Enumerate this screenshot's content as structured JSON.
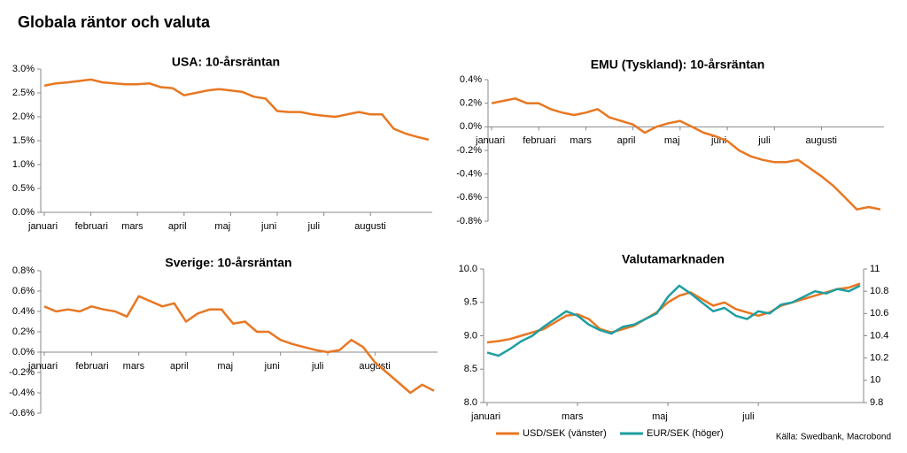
{
  "title": "Globala räntor och valuta",
  "source": "Källa: Swedbank, Macrobond",
  "chart_data": [
    {
      "type": "line",
      "title": "USA: 10-årsräntan",
      "color": "#e87722",
      "categories": [
        "januari",
        null,
        null,
        null,
        "februari",
        null,
        null,
        null,
        "mars",
        null,
        null,
        null,
        "april",
        null,
        null,
        null,
        "maj",
        null,
        null,
        null,
        "juni",
        null,
        null,
        null,
        "juli",
        null,
        null,
        null,
        "augusti",
        null,
        null,
        null,
        null,
        null
      ],
      "values": [
        2.65,
        2.7,
        2.72,
        2.75,
        2.78,
        2.72,
        2.7,
        2.68,
        2.68,
        2.7,
        2.62,
        2.6,
        2.45,
        2.5,
        2.55,
        2.58,
        2.55,
        2.52,
        2.42,
        2.38,
        2.12,
        2.1,
        2.1,
        2.05,
        2.02,
        2.0,
        2.05,
        2.1,
        2.05,
        2.05,
        1.75,
        1.65,
        1.58,
        1.52
      ],
      "ylim": [
        0,
        3
      ],
      "yticks": [
        {
          "value": 0,
          "label": "0.0%"
        },
        {
          "value": 0.5,
          "label": "0.5%"
        },
        {
          "value": 1,
          "label": "1.0%"
        },
        {
          "value": 1.5,
          "label": "1.5%"
        },
        {
          "value": 2,
          "label": "2.0%"
        },
        {
          "value": 2.5,
          "label": "2.5%"
        },
        {
          "value": 3,
          "label": "3.0%"
        }
      ]
    },
    {
      "type": "line",
      "title": "EMU (Tyskland): 10-årsräntan",
      "color": "#e87722",
      "categories": [
        "januari",
        null,
        null,
        null,
        "februari",
        null,
        null,
        null,
        "mars",
        null,
        null,
        null,
        "april",
        null,
        null,
        null,
        "maj",
        null,
        null,
        null,
        "juni",
        null,
        null,
        null,
        "juli",
        null,
        null,
        null,
        "augusti",
        null,
        null,
        null,
        null,
        null
      ],
      "values": [
        0.2,
        0.22,
        0.24,
        0.2,
        0.2,
        0.15,
        0.12,
        0.1,
        0.12,
        0.15,
        0.08,
        0.05,
        0.02,
        -0.05,
        0.0,
        0.03,
        0.05,
        0.0,
        -0.05,
        -0.08,
        -0.12,
        -0.2,
        -0.25,
        -0.28,
        -0.3,
        -0.3,
        -0.28,
        -0.35,
        -0.42,
        -0.5,
        -0.6,
        -0.7,
        -0.68,
        -0.7
      ],
      "ylim": [
        -0.8,
        0.4
      ],
      "yticks": [
        {
          "value": -0.8,
          "label": "-0.8%"
        },
        {
          "value": -0.6,
          "label": "-0.6%"
        },
        {
          "value": -0.4,
          "label": "-0.4%"
        },
        {
          "value": -0.2,
          "label": "-0.2%"
        },
        {
          "value": 0,
          "label": "0.0%"
        },
        {
          "value": 0.2,
          "label": "0.2%"
        },
        {
          "value": 0.4,
          "label": "0.4%"
        }
      ]
    },
    {
      "type": "line",
      "title": "Sverige: 10-årsräntan",
      "color": "#e87722",
      "categories": [
        "januari",
        null,
        null,
        null,
        "februari",
        null,
        null,
        null,
        "mars",
        null,
        null,
        null,
        "april",
        null,
        null,
        null,
        "maj",
        null,
        null,
        null,
        "juni",
        null,
        null,
        null,
        "juli",
        null,
        null,
        null,
        "augusti",
        null,
        null,
        null,
        null,
        null
      ],
      "values": [
        0.45,
        0.4,
        0.42,
        0.4,
        0.45,
        0.42,
        0.4,
        0.35,
        0.55,
        0.5,
        0.45,
        0.48,
        0.3,
        0.38,
        0.42,
        0.42,
        0.28,
        0.3,
        0.2,
        0.2,
        0.12,
        0.08,
        0.05,
        0.02,
        0.0,
        0.02,
        0.12,
        0.05,
        -0.1,
        -0.2,
        -0.3,
        -0.4,
        -0.32,
        -0.38
      ],
      "ylim": [
        -0.6,
        0.8
      ],
      "yticks": [
        {
          "value": -0.6,
          "label": "-0.6%"
        },
        {
          "value": -0.4,
          "label": "-0.4%"
        },
        {
          "value": -0.2,
          "label": "-0.2%"
        },
        {
          "value": 0,
          "label": "0.0%"
        },
        {
          "value": 0.2,
          "label": "0.2%"
        },
        {
          "value": 0.4,
          "label": "0.4%"
        },
        {
          "value": 0.6,
          "label": "0.6%"
        },
        {
          "value": 0.8,
          "label": "0.8%"
        }
      ]
    },
    {
      "type": "line",
      "title": "Valutamarknaden",
      "categories": [
        "januari",
        null,
        null,
        null,
        null,
        null,
        null,
        null,
        "mars",
        null,
        null,
        null,
        null,
        null,
        null,
        null,
        "maj",
        null,
        null,
        null,
        null,
        null,
        null,
        null,
        "juli",
        null,
        null,
        null,
        null,
        null,
        null,
        null,
        null,
        null
      ],
      "series": [
        {
          "name": "USD/SEK (vänster)",
          "color": "#e87722",
          "values": [
            8.9,
            8.92,
            8.95,
            9.0,
            9.05,
            9.1,
            9.2,
            9.3,
            9.32,
            9.25,
            9.1,
            9.05,
            9.1,
            9.15,
            9.25,
            9.35,
            9.5,
            9.6,
            9.65,
            9.55,
            9.45,
            9.5,
            9.4,
            9.35,
            9.3,
            9.35,
            9.45,
            9.5,
            9.55,
            9.6,
            9.65,
            9.7,
            9.72,
            9.78
          ]
        },
        {
          "name": "EUR/SEK (höger)",
          "color": "#1e9ea0",
          "axis": "y2",
          "values": [
            10.25,
            10.22,
            10.28,
            10.35,
            10.4,
            10.48,
            10.55,
            10.62,
            10.58,
            10.5,
            10.45,
            10.42,
            10.48,
            10.5,
            10.55,
            10.6,
            10.75,
            10.85,
            10.78,
            10.7,
            10.62,
            10.65,
            10.58,
            10.55,
            10.62,
            10.6,
            10.68,
            10.7,
            10.75,
            10.8,
            10.78,
            10.82,
            10.8,
            10.85
          ]
        }
      ],
      "ylim": [
        8,
        10
      ],
      "yticks": [
        {
          "value": 8,
          "label": "8.0"
        },
        8.5,
        {
          "value": 9,
          "label": "9.0"
        },
        9.5,
        {
          "value": 10,
          "label": "10.0"
        }
      ],
      "y2lim": [
        9.8,
        11
      ],
      "y2ticks": [
        9.8,
        10,
        10.2,
        10.4,
        10.6,
        10.8,
        11
      ]
    }
  ]
}
